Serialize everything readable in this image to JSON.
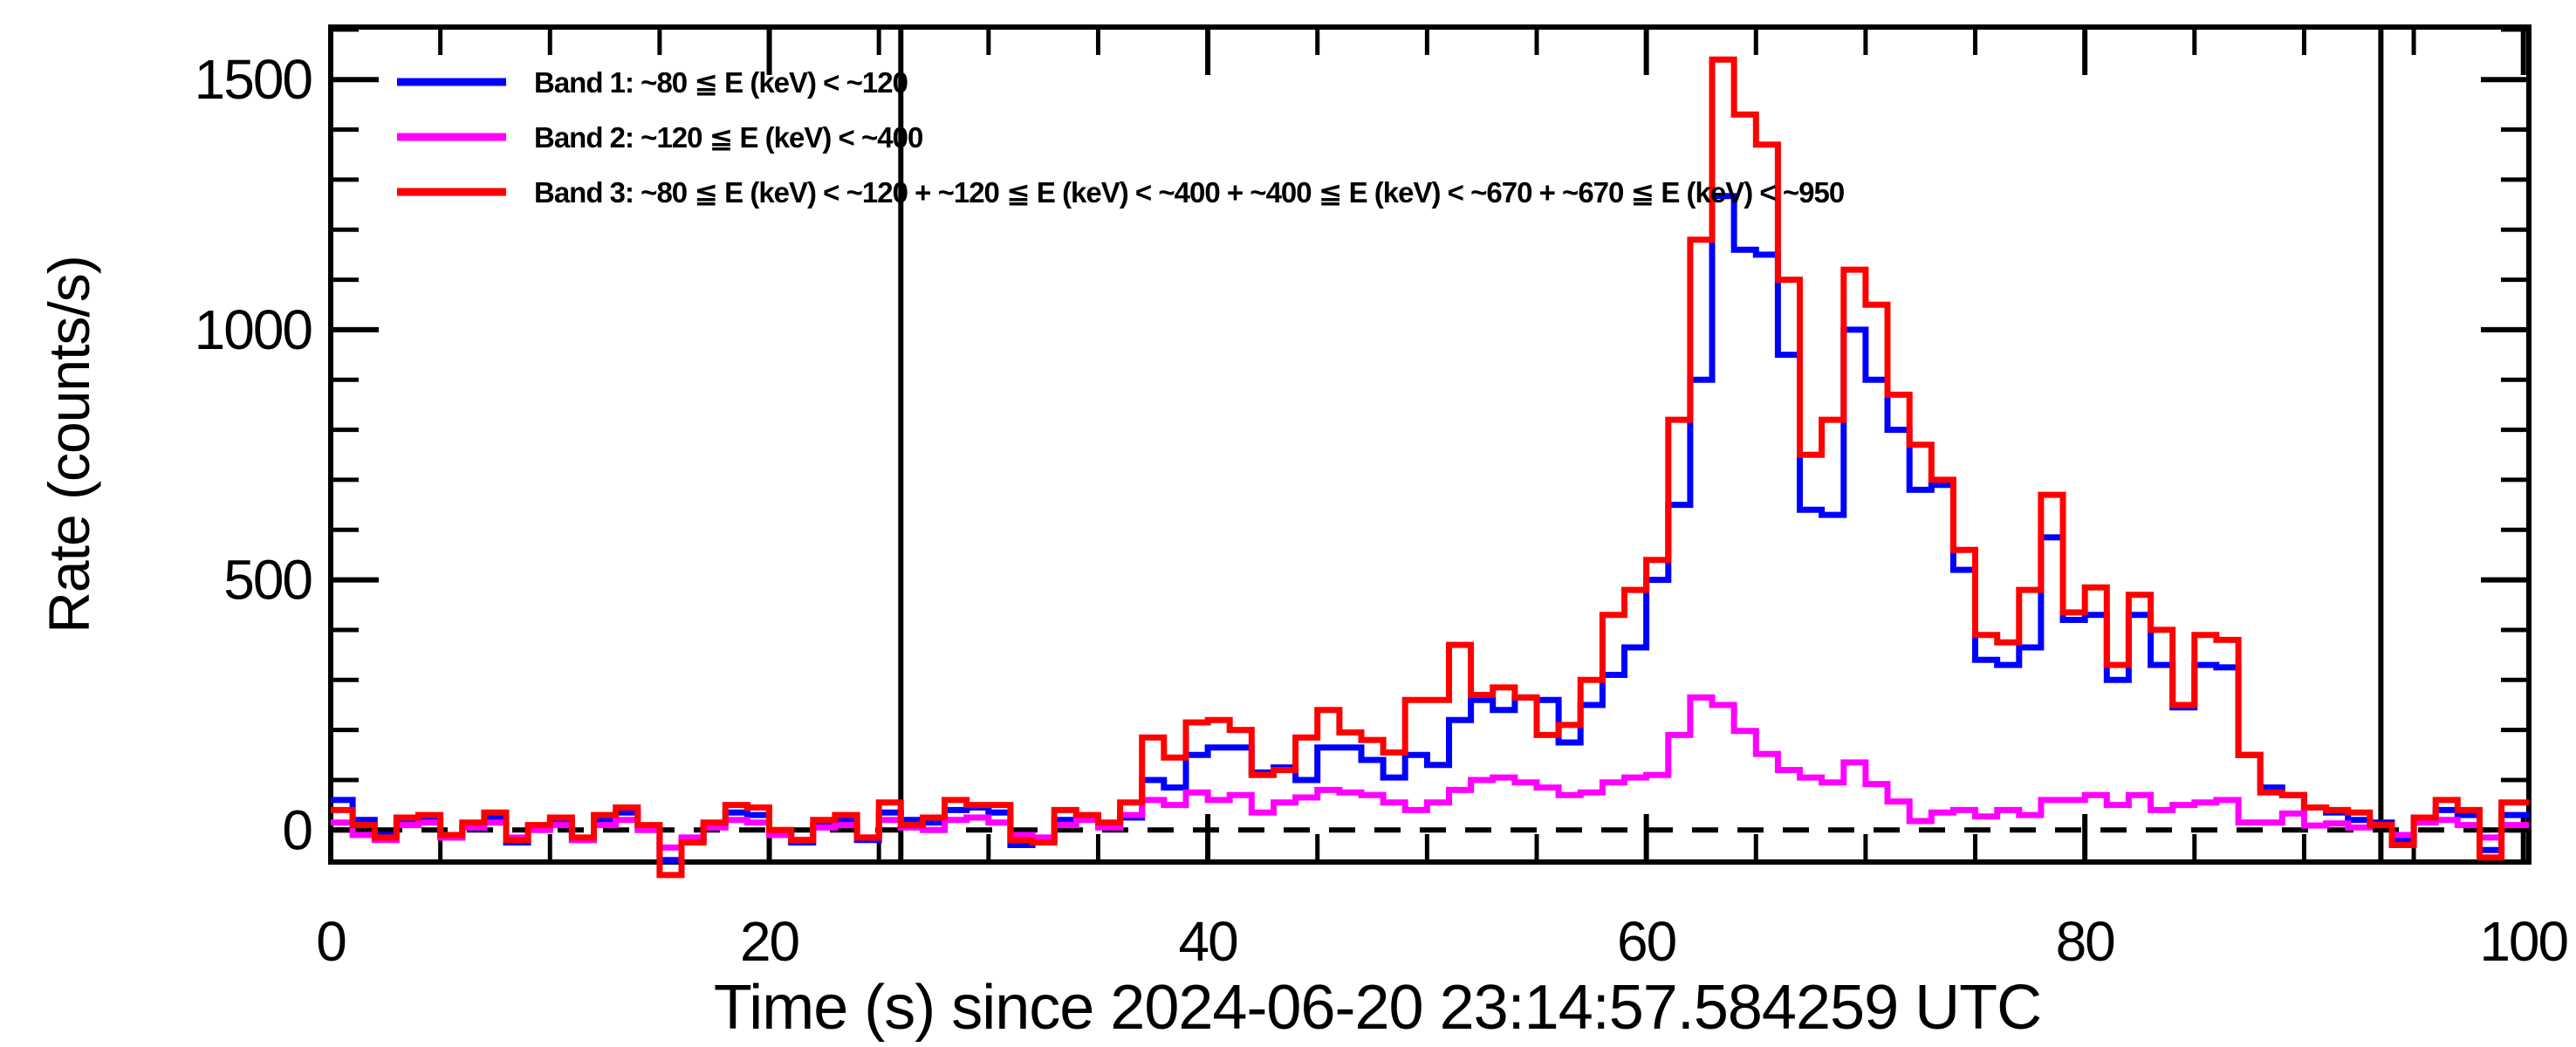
{
  "chart_data": {
    "type": "line",
    "subtype": "step-histogram-lightcurve",
    "title": "",
    "xlabel": "Time (s) since 2024-06-20 23:14:57.584259 UTC",
    "ylabel": "Rate (counts/s)",
    "xlim": [
      0,
      100.25
    ],
    "ylim": [
      -64,
      1605
    ],
    "x_major_ticks": [
      0,
      20,
      40,
      60,
      80,
      100
    ],
    "x_minor_step": 5,
    "y_major_ticks": [
      0,
      500,
      1000,
      1500
    ],
    "y_minor_step": 100,
    "grid": false,
    "legend_position": "top-left-inside",
    "bin_width_s": 1.0,
    "t_start": 0,
    "zero_dashed_line_y": 0,
    "vertical_marker_lines_s": [
      26.0,
      93.5
    ],
    "frame_color": "#000000",
    "background_color": "#ffffff",
    "series": [
      {
        "name": "band1",
        "legend": "Band 1: ~80 ≦ E (keV) < ~120",
        "color": "#0000ff",
        "values": [
          60,
          20,
          -10,
          15,
          20,
          -15,
          5,
          25,
          -25,
          5,
          15,
          -20,
          20,
          35,
          5,
          -60,
          -20,
          10,
          35,
          30,
          -5,
          -25,
          10,
          20,
          -20,
          35,
          20,
          15,
          40,
          45,
          35,
          -30,
          -20,
          20,
          25,
          10,
          25,
          100,
          85,
          150,
          165,
          165,
          115,
          125,
          100,
          165,
          165,
          140,
          105,
          150,
          130,
          220,
          260,
          240,
          265,
          260,
          175,
          250,
          310,
          365,
          500,
          650,
          900,
          1267,
          1160,
          1150,
          950,
          640,
          630,
          1000,
          900,
          800,
          680,
          690,
          520,
          340,
          330,
          365,
          585,
          420,
          430,
          300,
          430,
          330,
          245,
          330,
          325,
          150,
          85,
          70,
          45,
          35,
          20,
          15,
          -20,
          20,
          40,
          30,
          -40,
          30
        ]
      },
      {
        "name": "band2",
        "legend": "Band 2: ~120 ≦ E (keV) < ~400",
        "color": "#ff00ff",
        "values": [
          15,
          -10,
          -20,
          10,
          15,
          -15,
          5,
          15,
          -15,
          0,
          10,
          -20,
          10,
          20,
          0,
          -35,
          -15,
          5,
          20,
          15,
          -10,
          -20,
          5,
          10,
          -15,
          20,
          5,
          0,
          20,
          25,
          15,
          -10,
          -15,
          10,
          20,
          5,
          30,
          60,
          50,
          75,
          60,
          70,
          35,
          55,
          65,
          80,
          75,
          70,
          55,
          40,
          55,
          80,
          100,
          105,
          95,
          85,
          70,
          75,
          95,
          105,
          110,
          190,
          265,
          250,
          198,
          152,
          120,
          105,
          95,
          135,
          92,
          57,
          18,
          35,
          40,
          27,
          40,
          30,
          60,
          60,
          70,
          50,
          70,
          40,
          50,
          55,
          60,
          15,
          15,
          33,
          9,
          13,
          5,
          10,
          -10,
          15,
          20,
          10,
          -15,
          10
        ]
      },
      {
        "name": "band3",
        "legend": "Band 3: ~80 ≦ E (keV) < ~120 + ~120 ≦ E (keV) < ~400 + ~400 ≦ E (keV) < ~670 + ~670 ≦ E (keV) < ~950",
        "color": "#ff0000",
        "values": [
          40,
          10,
          -15,
          25,
          30,
          -10,
          15,
          35,
          -20,
          10,
          25,
          -15,
          30,
          45,
          10,
          -90,
          -25,
          15,
          50,
          45,
          0,
          -20,
          20,
          30,
          -15,
          55,
          10,
          25,
          60,
          50,
          50,
          -20,
          -25,
          40,
          30,
          15,
          55,
          185,
          145,
          215,
          220,
          200,
          110,
          120,
          185,
          240,
          195,
          180,
          155,
          260,
          260,
          370,
          270,
          285,
          265,
          190,
          210,
          300,
          430,
          480,
          540,
          820,
          1180,
          1540,
          1430,
          1370,
          1100,
          750,
          820,
          1120,
          1050,
          870,
          770,
          700,
          560,
          390,
          375,
          480,
          670,
          435,
          485,
          330,
          470,
          400,
          250,
          390,
          380,
          150,
          75,
          70,
          45,
          40,
          35,
          10,
          -30,
          25,
          60,
          40,
          -55,
          55
        ]
      }
    ],
    "draw_order": [
      "band1",
      "band2",
      "band3"
    ]
  },
  "legend": {
    "entries": [
      {
        "label": "Band 1: ~80 ≦ E (keV) < ~120",
        "color": "#0000ff"
      },
      {
        "label": "Band 2: ~120 ≦ E (keV) < ~400",
        "color": "#ff00ff"
      },
      {
        "label": "Band 3: ~80 ≦ E (keV) < ~120 + ~120 ≦ E (keV) < ~400 + ~400 ≦ E (keV) < ~670 + ~670 ≦ E (keV) < ~950",
        "color": "#ff0000"
      }
    ]
  },
  "axes_text": {
    "x_tick_labels": [
      "0",
      "20",
      "40",
      "60",
      "80",
      "100"
    ],
    "y_tick_labels": [
      "0",
      "500",
      "1000",
      "1500"
    ],
    "x_title": "Time (s) since 2024-06-20 23:14:57.584259 UTC",
    "y_title": "Rate (counts/s)"
  }
}
